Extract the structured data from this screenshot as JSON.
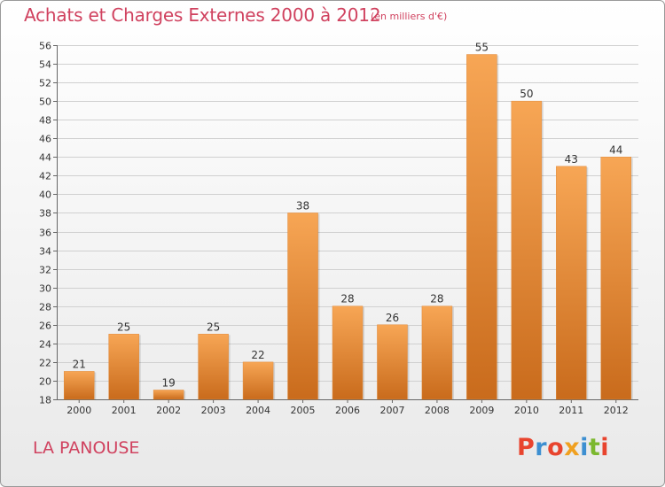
{
  "header": {
    "title": "Achats et Charges Externes 2000 à 2012",
    "unit": "(en milliers d'€)"
  },
  "footer": {
    "commune": "LA PANOUSE",
    "logo": "Proxiti"
  },
  "colors": {
    "title": "#d0425f",
    "bar_light": "#f7a655",
    "bar_dark": "#c96b1c",
    "logo_letters": [
      "#e8442e",
      "#3d8fd1",
      "#e8442e",
      "#f0a020",
      "#3d8fd1",
      "#7cb82f",
      "#e8442e"
    ]
  },
  "chart_data": {
    "type": "bar",
    "title": "Achats et Charges Externes 2000 à 2012",
    "subtitle": "(en milliers d'€)",
    "categories": [
      "2000",
      "2001",
      "2002",
      "2003",
      "2004",
      "2005",
      "2006",
      "2007",
      "2008",
      "2009",
      "2010",
      "2011",
      "2012"
    ],
    "values": [
      21,
      25,
      19,
      25,
      22,
      38,
      28,
      26,
      28,
      55,
      50,
      43,
      44
    ],
    "ylim": [
      18,
      56
    ],
    "yticks": [
      18,
      20,
      22,
      24,
      26,
      28,
      30,
      32,
      34,
      36,
      38,
      40,
      42,
      44,
      46,
      48,
      50,
      52,
      54,
      56
    ],
    "grid": true,
    "legend": "none"
  }
}
